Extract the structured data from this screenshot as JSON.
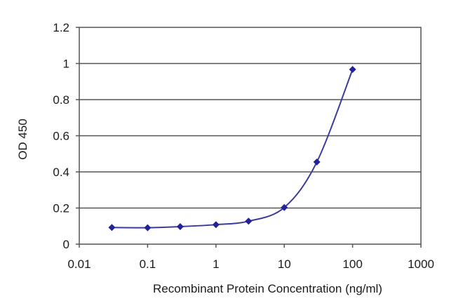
{
  "chart_data": {
    "type": "line",
    "title": "",
    "xlabel": "Recombinant Protein Concentration (ng/ml)",
    "ylabel": "OD 450",
    "x_scale": "log",
    "xlim": [
      0.01,
      1000
    ],
    "ylim": [
      0,
      1.2
    ],
    "x_ticks": [
      0.01,
      0.1,
      1,
      10,
      100,
      1000
    ],
    "x_tick_labels": [
      "0.01",
      "0.1",
      "1",
      "10",
      "100",
      "1000"
    ],
    "y_ticks": [
      0,
      0.2,
      0.4,
      0.6,
      0.8,
      1,
      1.2
    ],
    "y_tick_labels": [
      "0",
      "0.2",
      "0.4",
      "0.6",
      "0.8",
      "1",
      "1.2"
    ],
    "grid": "horizontal major gridlines",
    "legend": "none",
    "series": [
      {
        "x": [
          0.03,
          0.1,
          0.3,
          1,
          3,
          10,
          30,
          100
        ],
        "y": [
          0.092,
          0.091,
          0.097,
          0.108,
          0.127,
          0.203,
          0.455,
          0.967
        ],
        "color": "#3b3b9c",
        "marker": "diamond",
        "marker_color": "#222299"
      }
    ],
    "frame_color": "#555555",
    "gridline_color": "#555555"
  }
}
